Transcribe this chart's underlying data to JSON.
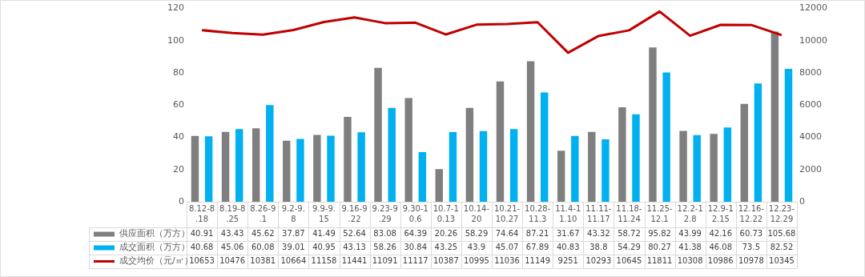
{
  "chart_data": {
    "type": "bar",
    "categories": [
      "8.12-8.18",
      "8.19-8.25",
      "8.26-9.1",
      "9.2-9.8",
      "9.9-9.15",
      "9.16-9.22",
      "9.23-9.29",
      "9.30-10.6",
      "10.7-10.13",
      "10.14-20",
      "10.21-10.27",
      "10.28-11.3",
      "11.4-11.10",
      "11.11-11.17",
      "11.18-11.24",
      "11.25-12.1",
      "12.2-12.8",
      "12.9-12.15",
      "12.16-12.22",
      "12.23-12.29"
    ],
    "series": [
      {
        "name": "供应面积（万方）",
        "color": "#7f7f7f",
        "values": [
          40.91,
          43.43,
          45.62,
          37.87,
          41.49,
          52.64,
          83.08,
          64.39,
          20.26,
          58.29,
          74.64,
          87.21,
          31.67,
          43.32,
          58.72,
          95.82,
          43.99,
          42.16,
          60.73,
          105.68
        ]
      },
      {
        "name": "成交面积（万方）",
        "color": "#00b0f0",
        "values": [
          40.68,
          45.06,
          60.08,
          39.01,
          40.95,
          43.13,
          58.26,
          30.84,
          43.25,
          43.9,
          45.07,
          67.89,
          40.83,
          38.8,
          54.29,
          80.27,
          41.38,
          46.08,
          73.5,
          82.52
        ]
      },
      {
        "name": "成交均价（元/㎡）",
        "type": "line",
        "axis": "y2",
        "color": "#c00000",
        "values": [
          10653,
          10476,
          10381,
          10664,
          11158,
          11441,
          11091,
          11117,
          10387,
          10995,
          11036,
          11149,
          9251,
          10293,
          10645,
          11811,
          10308,
          10986,
          10978,
          10345
        ]
      }
    ],
    "ylim": [
      0,
      120
    ],
    "yticks": [
      0,
      20,
      40,
      60,
      80,
      100,
      120
    ],
    "y2lim": [
      0,
      12000
    ],
    "y2ticks": [
      0,
      2000,
      4000,
      6000,
      8000,
      10000,
      12000
    ],
    "grid": false,
    "legend": "bottom",
    "marker": "none",
    "line_style": "solid",
    "data_labels": true
  }
}
